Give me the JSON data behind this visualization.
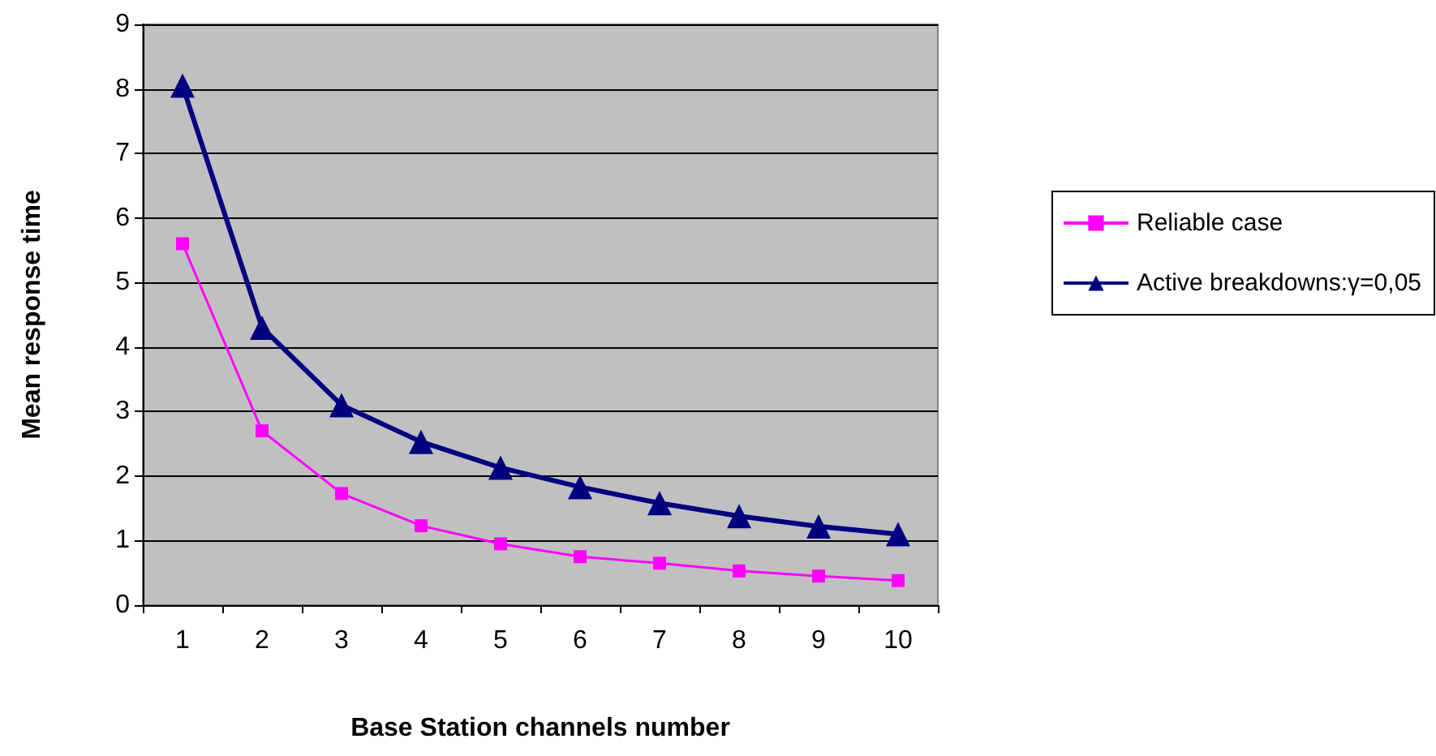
{
  "chart_data": {
    "type": "line",
    "xlabel": "Base Station channels number",
    "ylabel": "Mean response time",
    "categories": [
      "1",
      "2",
      "3",
      "4",
      "5",
      "6",
      "7",
      "8",
      "9",
      "10"
    ],
    "series": [
      {
        "name": "Reliable case",
        "color": "#ff00ff",
        "marker": "square",
        "values": [
          5.6,
          2.7,
          1.73,
          1.23,
          0.95,
          0.75,
          0.65,
          0.53,
          0.45,
          0.38
        ]
      },
      {
        "name": "Active breakdowns:γ=0,05",
        "color": "#000080",
        "marker": "triangle",
        "values": [
          8.05,
          4.3,
          3.1,
          2.53,
          2.13,
          1.83,
          1.58,
          1.38,
          1.22,
          1.1
        ]
      }
    ],
    "ylim": [
      0,
      9
    ],
    "yticks": [
      0,
      1,
      2,
      3,
      4,
      5,
      6,
      7,
      8,
      9
    ],
    "grid": "y",
    "legend": "right"
  }
}
